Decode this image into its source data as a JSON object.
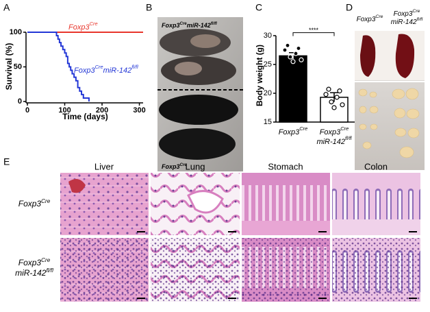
{
  "panel_labels": [
    "A",
    "B",
    "C",
    "D",
    "E"
  ],
  "chart_data": [
    {
      "type": "line",
      "step": true,
      "ylabel": "Survival (%)",
      "xlabel": "Time (days)",
      "xlim": [
        0,
        310
      ],
      "ylim": [
        0,
        100
      ],
      "xticks": [
        0,
        100,
        200,
        300
      ],
      "yticks": [
        0,
        50,
        100
      ],
      "series": [
        {
          "label": [
            [
              {
                "text": "Foxp3"
              },
              {
                "text": "Cre",
                "sup": true
              }
            ]
          ],
          "color": "#e8352b",
          "x": [
            0,
            310
          ],
          "values": [
            100,
            100
          ]
        },
        {
          "label": [
            [
              {
                "text": "Foxp3"
              },
              {
                "text": "Cre",
                "sup": true
              },
              {
                "text": "miR-142"
              },
              {
                "text": "fl/fl",
                "sup": true
              }
            ]
          ],
          "color": "#2236d6",
          "x": [
            0,
            78,
            82,
            86,
            90,
            95,
            100,
            104,
            108,
            112,
            116,
            120,
            125,
            130,
            135,
            140,
            145,
            150,
            160,
            165
          ],
          "values": [
            100,
            95,
            90,
            85,
            80,
            75,
            70,
            65,
            55,
            50,
            45,
            40,
            35,
            30,
            20,
            15,
            10,
            5,
            5,
            0
          ]
        }
      ]
    },
    {
      "type": "bar",
      "ylabel": "Body weight (g)",
      "ylim": [
        15,
        31
      ],
      "yticks": [
        15,
        20,
        25,
        30
      ],
      "categories": [
        [
          [
            {
              "text": "Foxp3"
            },
            {
              "text": "Cre",
              "sup": true
            }
          ]
        ],
        [
          [
            {
              "text": "Foxp3"
            },
            {
              "text": "Cre",
              "sup": true
            }
          ],
          [
            {
              "text": "miR-142"
            },
            {
              "text": "fl/fl",
              "sup": true
            }
          ]
        ]
      ],
      "values": [
        26.5,
        19.3
      ],
      "errors": [
        0.55,
        0.8
      ],
      "colors": [
        "#000000",
        "#ffffff"
      ],
      "points": [
        [
          28.3,
          27.8,
          27.5,
          26.9,
          26.3,
          25.8,
          25.5
        ],
        [
          20.7,
          20.4,
          19.8,
          19.3,
          18.5,
          18.0,
          17.5
        ]
      ],
      "significance": "****"
    }
  ],
  "photo_b": {
    "top_label": [
      [
        {
          "text": "Foxp3"
        },
        {
          "text": "Cre",
          "sup": true
        },
        {
          "text": "miR-142"
        },
        {
          "text": "fl/fl",
          "sup": true
        }
      ]
    ],
    "bottom_label": [
      [
        {
          "text": "Foxp3"
        },
        {
          "text": "Cre",
          "sup": true
        }
      ]
    ]
  },
  "photo_d": {
    "left_label": [
      [
        {
          "text": "Foxp3"
        },
        {
          "text": "Cre",
          "sup": true
        }
      ]
    ],
    "right_label": [
      [
        {
          "text": "Foxp3"
        },
        {
          "text": "Cre",
          "sup": true
        }
      ],
      [
        {
          "text": "miR-142"
        },
        {
          "text": "fl/fl",
          "sup": true
        }
      ]
    ]
  },
  "histology": {
    "columns": [
      "Liver",
      "Lung",
      "Stomach",
      "Colon"
    ],
    "rows": [
      [
        [
          {
            "text": "Foxp3"
          },
          {
            "text": "Cre",
            "sup": true
          }
        ]
      ],
      [
        [
          {
            "text": "Foxp3"
          },
          {
            "text": "Cre",
            "sup": true
          }
        ],
        [
          {
            "text": "miR-142"
          },
          {
            "text": "fl/fl",
            "sup": true
          }
        ]
      ]
    ]
  }
}
